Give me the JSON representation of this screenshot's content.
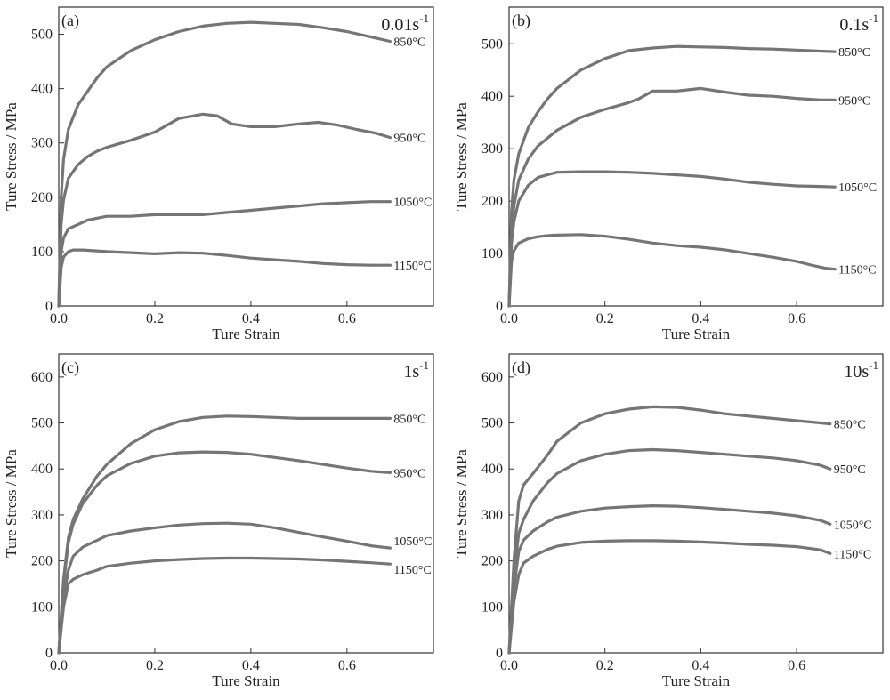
{
  "colors": {
    "curve": "#757575",
    "frame": "#333333",
    "text": "#222222"
  },
  "chart_data": [
    {
      "type": "line",
      "panel_label": "(a)",
      "rate_label": "0.01s",
      "rate_exp": "-1",
      "xlabel": "Ture Strain",
      "ylabel": "Ture Stress / MPa",
      "xlim": [
        0,
        0.78
      ],
      "ylim": [
        0,
        550
      ],
      "xticks": [
        0.0,
        0.2,
        0.4,
        0.6
      ],
      "xtick_labels": [
        "0.0",
        "0.2",
        "0.4",
        "0.6"
      ],
      "yticks": [
        0,
        100,
        200,
        300,
        400,
        500
      ],
      "ytick_labels": [
        "0",
        "100",
        "200",
        "300",
        "400",
        "500"
      ],
      "series": [
        {
          "name": "850°C",
          "x": [
            0,
            0.005,
            0.01,
            0.02,
            0.04,
            0.06,
            0.08,
            0.1,
            0.15,
            0.2,
            0.25,
            0.3,
            0.35,
            0.4,
            0.45,
            0.5,
            0.55,
            0.6,
            0.65,
            0.69
          ],
          "y": [
            0,
            200,
            270,
            325,
            370,
            395,
            420,
            440,
            470,
            490,
            505,
            515,
            520,
            522,
            520,
            518,
            512,
            505,
            495,
            487
          ]
        },
        {
          "name": "950°C",
          "x": [
            0,
            0.005,
            0.01,
            0.02,
            0.04,
            0.06,
            0.08,
            0.1,
            0.15,
            0.2,
            0.25,
            0.3,
            0.33,
            0.36,
            0.4,
            0.45,
            0.5,
            0.54,
            0.58,
            0.62,
            0.66,
            0.69
          ],
          "y": [
            0,
            150,
            195,
            235,
            260,
            275,
            285,
            292,
            305,
            320,
            345,
            353,
            350,
            335,
            330,
            330,
            335,
            338,
            333,
            325,
            318,
            310
          ]
        },
        {
          "name": "1050°C",
          "x": [
            0,
            0.005,
            0.01,
            0.02,
            0.04,
            0.06,
            0.1,
            0.15,
            0.2,
            0.25,
            0.3,
            0.35,
            0.4,
            0.45,
            0.5,
            0.55,
            0.6,
            0.65,
            0.69
          ],
          "y": [
            0,
            100,
            125,
            142,
            150,
            158,
            165,
            165,
            168,
            168,
            168,
            172,
            176,
            180,
            184,
            188,
            190,
            192,
            192
          ]
        },
        {
          "name": "1150°C",
          "x": [
            0,
            0.005,
            0.01,
            0.02,
            0.03,
            0.05,
            0.1,
            0.15,
            0.2,
            0.25,
            0.3,
            0.35,
            0.4,
            0.45,
            0.5,
            0.55,
            0.6,
            0.65,
            0.69
          ],
          "y": [
            0,
            70,
            90,
            100,
            103,
            103,
            100,
            98,
            96,
            98,
            97,
            93,
            88,
            85,
            82,
            78,
            76,
            75,
            75
          ]
        }
      ]
    },
    {
      "type": "line",
      "panel_label": "(b)",
      "rate_label": "0.1s",
      "rate_exp": "-1",
      "xlabel": "Ture Strain",
      "ylabel": "Ture Stress / MPa",
      "xlim": [
        0,
        0.78
      ],
      "ylim": [
        0,
        570
      ],
      "xticks": [
        0.0,
        0.2,
        0.4,
        0.6
      ],
      "xtick_labels": [
        "0.0",
        "0.2",
        "0.4",
        "0.6"
      ],
      "yticks": [
        0,
        100,
        200,
        300,
        400,
        500
      ],
      "ytick_labels": [
        "0",
        "100",
        "200",
        "300",
        "400",
        "500"
      ],
      "series": [
        {
          "name": "850°C",
          "x": [
            0,
            0.005,
            0.01,
            0.02,
            0.04,
            0.06,
            0.08,
            0.1,
            0.15,
            0.2,
            0.25,
            0.3,
            0.35,
            0.4,
            0.45,
            0.5,
            0.55,
            0.6,
            0.65,
            0.68
          ],
          "y": [
            0,
            180,
            240,
            290,
            340,
            370,
            395,
            415,
            450,
            472,
            487,
            492,
            495,
            494,
            493,
            491,
            490,
            488,
            486,
            485
          ]
        },
        {
          "name": "950°C",
          "x": [
            0,
            0.005,
            0.01,
            0.02,
            0.04,
            0.06,
            0.08,
            0.1,
            0.15,
            0.2,
            0.25,
            0.27,
            0.3,
            0.35,
            0.4,
            0.45,
            0.5,
            0.55,
            0.6,
            0.65,
            0.68
          ],
          "y": [
            0,
            140,
            190,
            240,
            280,
            305,
            320,
            335,
            360,
            375,
            388,
            395,
            410,
            410,
            415,
            408,
            402,
            400,
            396,
            393,
            393
          ]
        },
        {
          "name": "1050°C",
          "x": [
            0,
            0.005,
            0.01,
            0.02,
            0.04,
            0.06,
            0.08,
            0.1,
            0.15,
            0.2,
            0.25,
            0.3,
            0.35,
            0.4,
            0.45,
            0.5,
            0.55,
            0.6,
            0.65,
            0.68
          ],
          "y": [
            0,
            120,
            160,
            200,
            230,
            245,
            250,
            255,
            256,
            256,
            255,
            253,
            250,
            247,
            242,
            236,
            232,
            229,
            228,
            227
          ]
        },
        {
          "name": "1150°C",
          "x": [
            0,
            0.005,
            0.01,
            0.02,
            0.04,
            0.06,
            0.08,
            0.1,
            0.15,
            0.2,
            0.25,
            0.3,
            0.35,
            0.4,
            0.45,
            0.5,
            0.55,
            0.6,
            0.63,
            0.66,
            0.68
          ],
          "y": [
            0,
            85,
            105,
            120,
            128,
            132,
            134,
            135,
            136,
            133,
            127,
            120,
            115,
            112,
            107,
            100,
            93,
            85,
            78,
            72,
            70
          ]
        }
      ]
    },
    {
      "type": "line",
      "panel_label": "(c)",
      "rate_label": "1s",
      "rate_exp": "-1",
      "xlabel": "Ture Strain",
      "ylabel": "Ture Stress / MPa",
      "xlim": [
        0,
        0.78
      ],
      "ylim": [
        0,
        650
      ],
      "xticks": [
        0.0,
        0.2,
        0.4,
        0.6
      ],
      "xtick_labels": [
        "0.0",
        "0.2",
        "0.4",
        "0.6"
      ],
      "yticks": [
        0,
        100,
        200,
        300,
        400,
        500,
        600
      ],
      "ytick_labels": [
        "0",
        "100",
        "200",
        "300",
        "400",
        "500",
        "600"
      ],
      "series": [
        {
          "name": "850°C",
          "x": [
            0,
            0.01,
            0.02,
            0.03,
            0.05,
            0.08,
            0.1,
            0.15,
            0.2,
            0.25,
            0.3,
            0.35,
            0.4,
            0.45,
            0.5,
            0.55,
            0.6,
            0.65,
            0.69
          ],
          "y": [
            0,
            160,
            250,
            290,
            335,
            385,
            410,
            455,
            485,
            503,
            512,
            515,
            514,
            512,
            510,
            510,
            510,
            510,
            510
          ]
        },
        {
          "name": "950°C",
          "x": [
            0,
            0.01,
            0.02,
            0.03,
            0.05,
            0.08,
            0.1,
            0.15,
            0.2,
            0.25,
            0.3,
            0.35,
            0.4,
            0.45,
            0.5,
            0.55,
            0.6,
            0.65,
            0.69
          ],
          "y": [
            0,
            150,
            240,
            280,
            325,
            365,
            385,
            412,
            428,
            435,
            437,
            436,
            432,
            425,
            418,
            410,
            402,
            395,
            392
          ]
        },
        {
          "name": "1050°C",
          "x": [
            0,
            0.01,
            0.02,
            0.03,
            0.05,
            0.08,
            0.1,
            0.15,
            0.2,
            0.25,
            0.3,
            0.35,
            0.4,
            0.45,
            0.5,
            0.55,
            0.6,
            0.65,
            0.69
          ],
          "y": [
            0,
            120,
            180,
            210,
            230,
            245,
            255,
            265,
            272,
            278,
            281,
            282,
            280,
            272,
            262,
            252,
            243,
            233,
            228
          ]
        },
        {
          "name": "1150°C",
          "x": [
            0,
            0.01,
            0.02,
            0.03,
            0.05,
            0.08,
            0.1,
            0.15,
            0.2,
            0.25,
            0.3,
            0.35,
            0.4,
            0.45,
            0.5,
            0.55,
            0.6,
            0.65,
            0.69
          ],
          "y": [
            0,
            100,
            150,
            160,
            170,
            180,
            188,
            195,
            200,
            203,
            205,
            206,
            206,
            205,
            204,
            202,
            199,
            196,
            193
          ]
        }
      ]
    },
    {
      "type": "line",
      "panel_label": "(d)",
      "rate_label": "10s",
      "rate_exp": "-1",
      "xlabel": "Ture Strain",
      "ylabel": "Ture Stress / MPa",
      "xlim": [
        0,
        0.78
      ],
      "ylim": [
        0,
        650
      ],
      "xticks": [
        0.0,
        0.2,
        0.4,
        0.6
      ],
      "xtick_labels": [
        "0.0",
        "0.2",
        "0.4",
        "0.6"
      ],
      "yticks": [
        0,
        100,
        200,
        300,
        400,
        500,
        600
      ],
      "ytick_labels": [
        "0",
        "100",
        "200",
        "300",
        "400",
        "500",
        "600"
      ],
      "series": [
        {
          "name": "850°C",
          "x": [
            0,
            0.01,
            0.02,
            0.03,
            0.05,
            0.08,
            0.1,
            0.15,
            0.2,
            0.25,
            0.3,
            0.35,
            0.4,
            0.45,
            0.5,
            0.55,
            0.6,
            0.65,
            0.67
          ],
          "y": [
            0,
            200,
            330,
            365,
            390,
            430,
            460,
            500,
            520,
            530,
            535,
            534,
            528,
            520,
            515,
            510,
            505,
            500,
            498
          ]
        },
        {
          "name": "950°C",
          "x": [
            0,
            0.01,
            0.02,
            0.03,
            0.05,
            0.08,
            0.1,
            0.15,
            0.2,
            0.25,
            0.3,
            0.35,
            0.4,
            0.45,
            0.5,
            0.55,
            0.6,
            0.65,
            0.67
          ],
          "y": [
            0,
            170,
            260,
            290,
            330,
            370,
            390,
            418,
            432,
            440,
            442,
            440,
            436,
            432,
            428,
            424,
            418,
            408,
            400
          ]
        },
        {
          "name": "1050°C",
          "x": [
            0,
            0.01,
            0.02,
            0.03,
            0.05,
            0.08,
            0.1,
            0.15,
            0.2,
            0.25,
            0.3,
            0.35,
            0.4,
            0.45,
            0.5,
            0.55,
            0.6,
            0.65,
            0.67
          ],
          "y": [
            0,
            140,
            220,
            245,
            265,
            285,
            295,
            308,
            315,
            318,
            320,
            319,
            316,
            312,
            308,
            304,
            298,
            288,
            280
          ]
        },
        {
          "name": "1150°C",
          "x": [
            0,
            0.01,
            0.02,
            0.03,
            0.05,
            0.08,
            0.1,
            0.15,
            0.2,
            0.25,
            0.3,
            0.35,
            0.4,
            0.45,
            0.5,
            0.55,
            0.6,
            0.65,
            0.67
          ],
          "y": [
            0,
            110,
            170,
            195,
            210,
            225,
            232,
            240,
            243,
            244,
            244,
            243,
            241,
            239,
            236,
            234,
            231,
            224,
            216
          ]
        }
      ]
    }
  ]
}
